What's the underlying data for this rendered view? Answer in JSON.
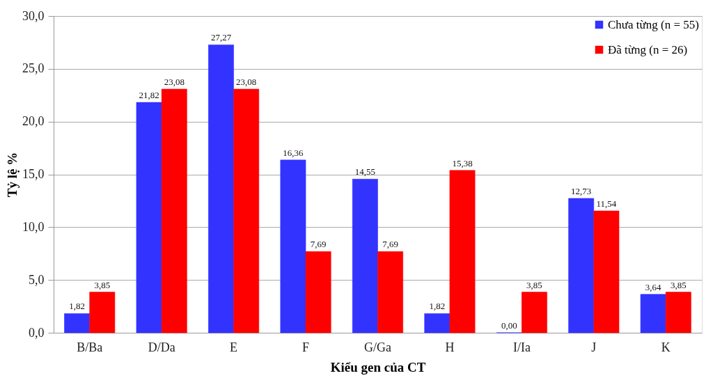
{
  "chart_data": {
    "type": "bar",
    "xlabel": "Kiểu gen của CT",
    "ylabel": "Tỷ lệ %",
    "categories": [
      "B/Ba",
      "D/Da",
      "E",
      "F",
      "G/Ga",
      "H",
      "I/Ia",
      "J",
      "K"
    ],
    "series": [
      {
        "name": "Chưa từng (n = 55)",
        "color": "#3333ff",
        "values": [
          1.82,
          21.82,
          27.27,
          16.36,
          14.55,
          1.82,
          0,
          12.73,
          3.64
        ],
        "value_labels": [
          "1,82",
          "21,82",
          "27,27",
          "16,36",
          "14,55",
          "1,82",
          "0,00",
          "12,73",
          "3,64"
        ]
      },
      {
        "name": "Đã từng (n = 26)",
        "color": "#ff0000",
        "values": [
          3.85,
          23.08,
          23.08,
          7.69,
          7.69,
          15.38,
          3.85,
          11.54,
          3.85
        ],
        "value_labels": [
          "3,85",
          "23,08",
          "23,08",
          "7,69",
          "7,69",
          "15,38",
          "3,85",
          "11,54",
          "3,85"
        ]
      }
    ],
    "ylim": [
      0,
      30
    ],
    "yticks": [
      {
        "value": 0,
        "label": "0,0"
      },
      {
        "value": 5,
        "label": "5,0"
      },
      {
        "value": 10,
        "label": "10,0"
      },
      {
        "value": 15,
        "label": "15,0"
      },
      {
        "value": 20,
        "label": "20,0"
      },
      {
        "value": 25,
        "label": "25,0"
      },
      {
        "value": 30,
        "label": "30,0"
      }
    ],
    "grid": "y",
    "legend": "top right"
  }
}
